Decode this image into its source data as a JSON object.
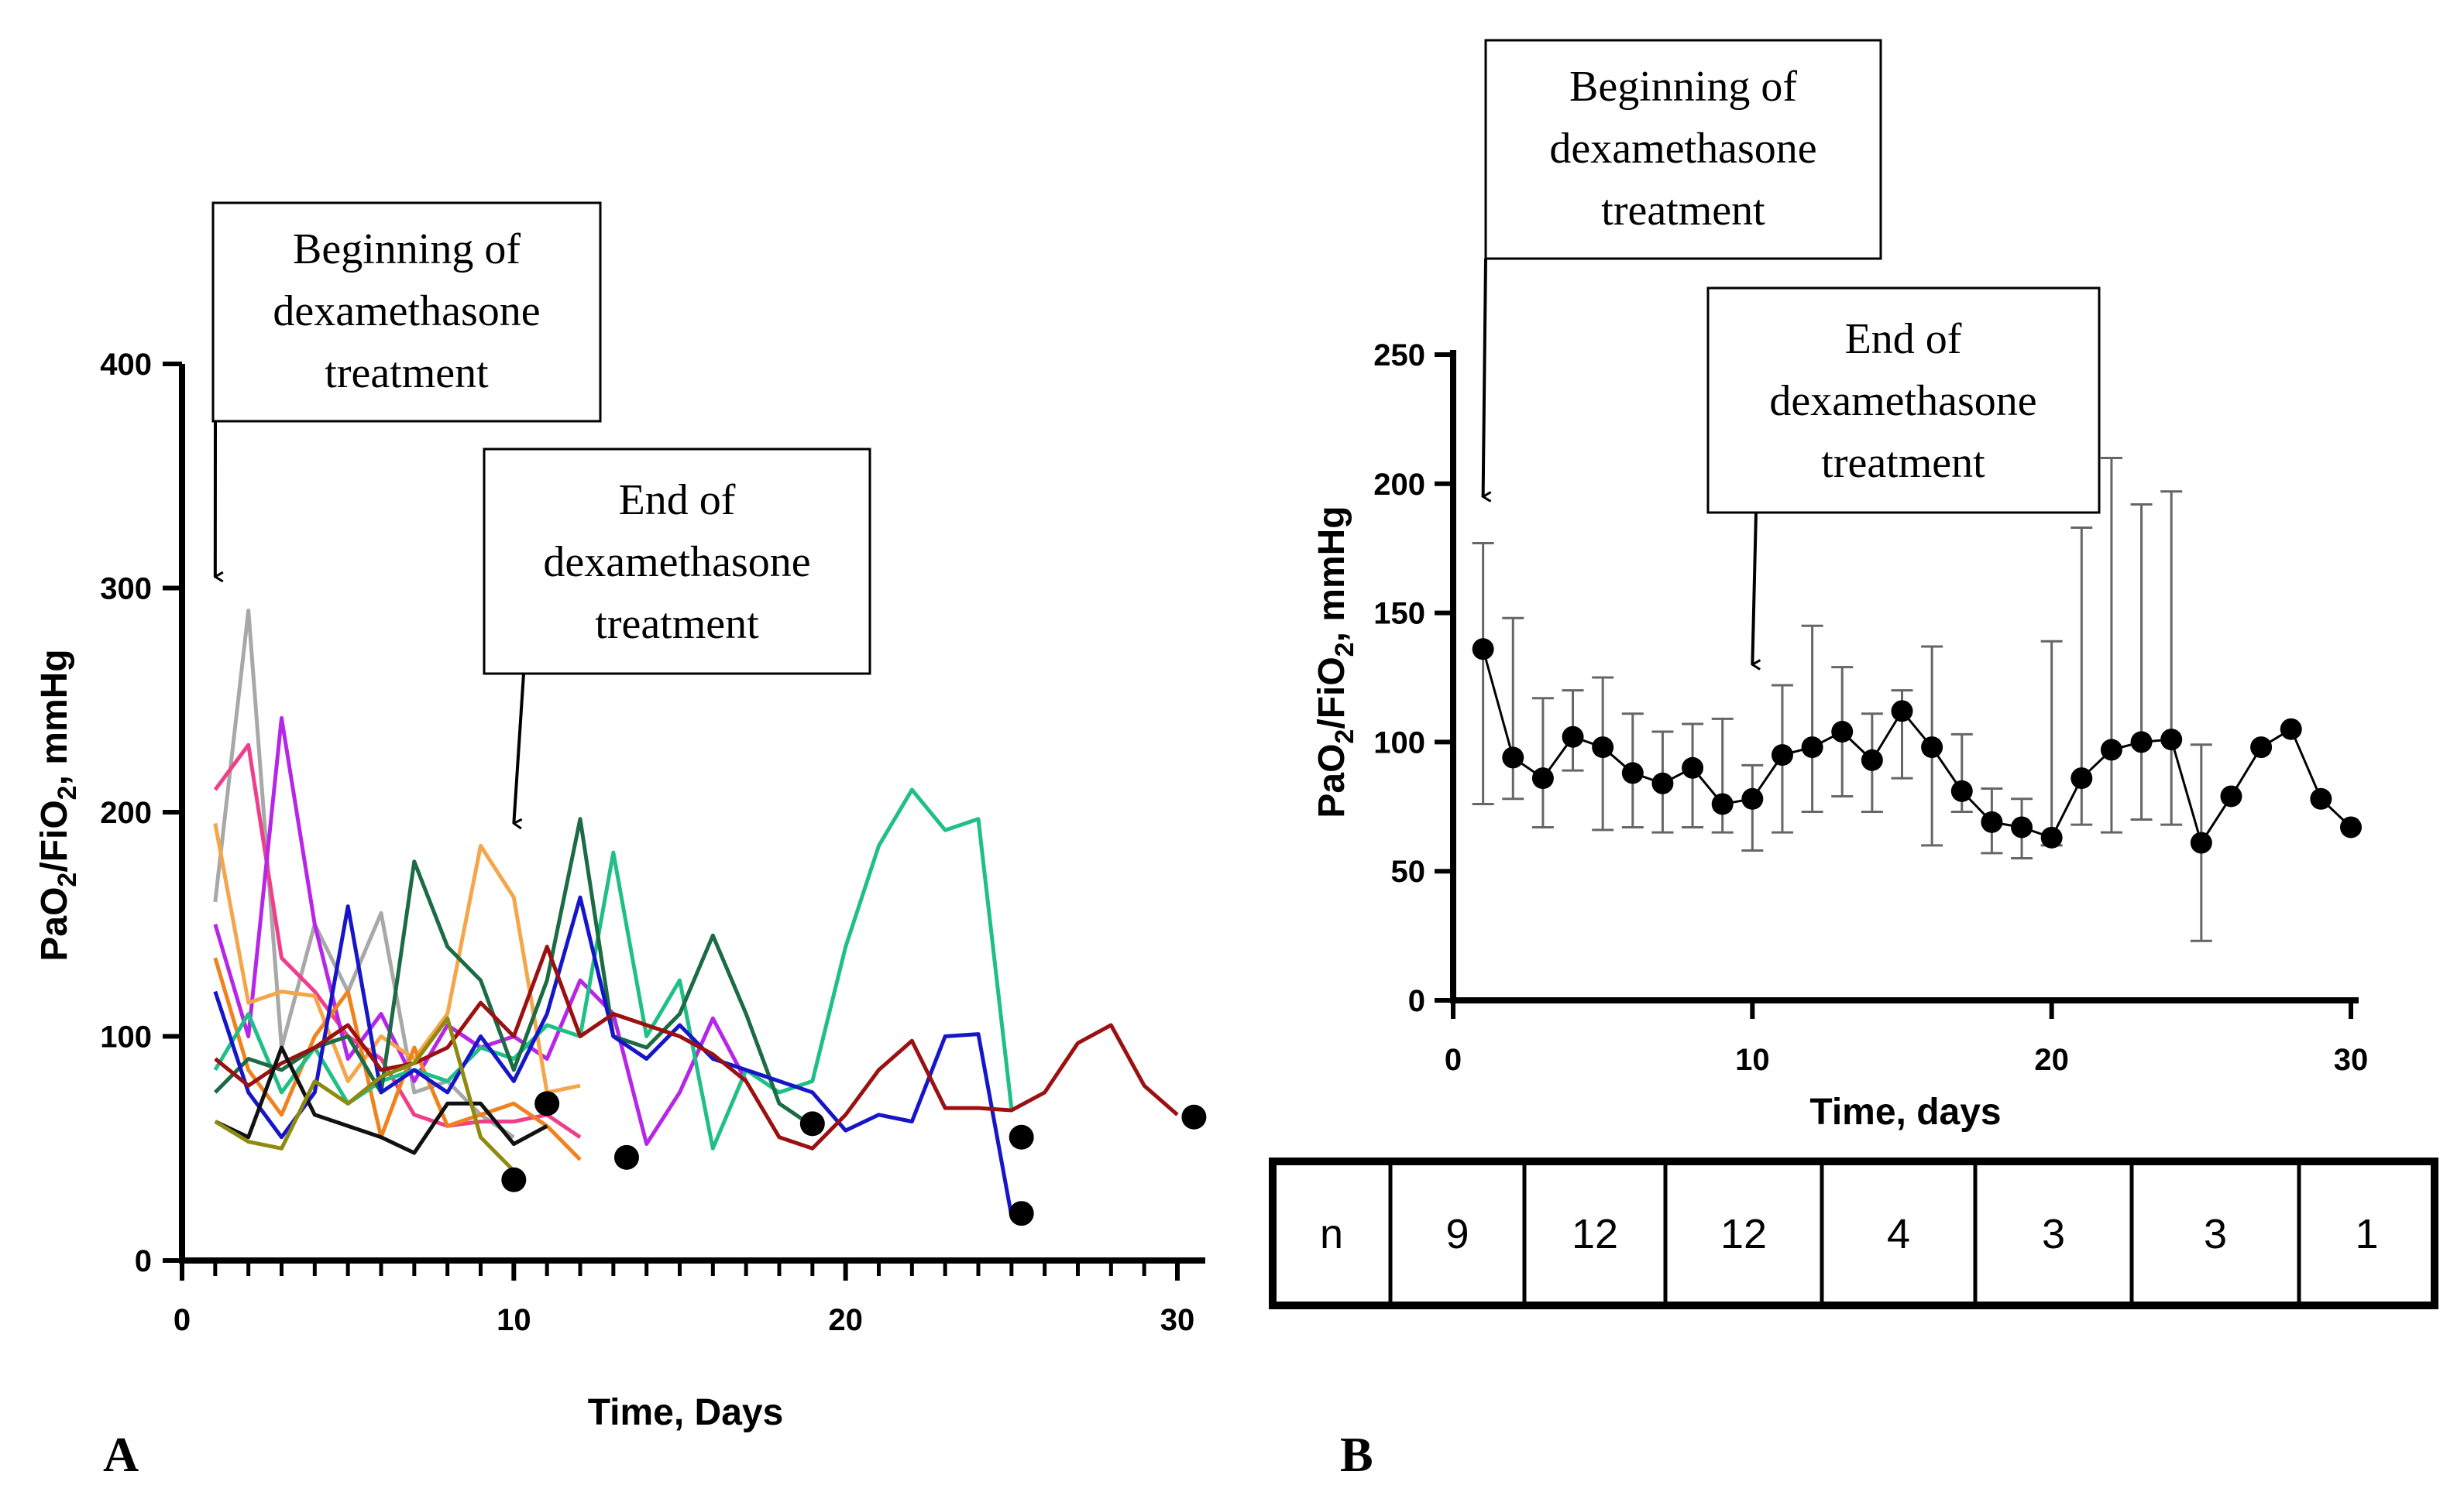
{
  "chart_data": [
    {
      "panel": "A",
      "type": "line",
      "title": "",
      "xlabel": "Time, Days",
      "ylabel": "PaO2/FiO2, mmHg",
      "xlim": [
        0,
        31
      ],
      "ylim": [
        0,
        400
      ],
      "xticks": [
        0,
        10,
        20,
        30
      ],
      "yticks": [
        0,
        100,
        200,
        300,
        400
      ],
      "annotations": [
        {
          "text": [
            "Beginning of",
            "dexamethasone",
            "treatment"
          ],
          "arrow_x": 1,
          "arrow_y": 305
        },
        {
          "text": [
            "End of",
            "dexamethasone",
            "treatment"
          ],
          "arrow_x": 10,
          "arrow_y": 195
        }
      ],
      "series": [
        {
          "name": "silver",
          "color": "#a8a8a8",
          "x": [
            1,
            2,
            3,
            4,
            5,
            6,
            7,
            8,
            9,
            10
          ],
          "y": [
            160,
            290,
            95,
            150,
            120,
            155,
            75,
            80,
            65,
            55
          ]
        },
        {
          "name": "pink",
          "color": "#ef3f8a",
          "x": [
            1,
            2,
            3,
            4,
            5,
            6,
            7,
            8,
            9,
            10,
            11,
            12
          ],
          "y": [
            210,
            230,
            135,
            120,
            100,
            90,
            65,
            60,
            62,
            62,
            65,
            55
          ]
        },
        {
          "name": "purple",
          "color": "#b626e8",
          "x": [
            1,
            2,
            3,
            4,
            5,
            6,
            7,
            8,
            9,
            10,
            11,
            12,
            13,
            14,
            15,
            16,
            17
          ],
          "y": [
            150,
            100,
            242,
            150,
            90,
            110,
            80,
            105,
            95,
            100,
            90,
            125,
            110,
            52,
            75,
            108,
            80
          ]
        },
        {
          "name": "orange",
          "color": "#f5a54a",
          "x": [
            1,
            2,
            3,
            4,
            5,
            6,
            7,
            8,
            9,
            10,
            11,
            12
          ],
          "y": [
            195,
            115,
            120,
            118,
            80,
            100,
            90,
            110,
            185,
            162,
            75,
            78
          ]
        },
        {
          "name": "dark-orange",
          "color": "#f0821e",
          "x": [
            1,
            2,
            3,
            4,
            5,
            6,
            7,
            8,
            9,
            10,
            11,
            12
          ],
          "y": [
            135,
            85,
            65,
            100,
            120,
            55,
            95,
            60,
            65,
            70,
            60,
            45
          ]
        },
        {
          "name": "teal",
          "color": "#1fbf86",
          "x": [
            1,
            2,
            3,
            4,
            5,
            6,
            7,
            8,
            9,
            10,
            11,
            12,
            13,
            14,
            15,
            16,
            17,
            18,
            19,
            20,
            21,
            22,
            23,
            24,
            25
          ],
          "y": [
            85,
            110,
            75,
            95,
            70,
            80,
            85,
            80,
            95,
            90,
            105,
            100,
            182,
            100,
            125,
            50,
            85,
            75,
            80,
            140,
            185,
            210,
            192,
            197,
            68
          ]
        },
        {
          "name": "dark-green",
          "color": "#1b6b45",
          "x": [
            1,
            2,
            3,
            4,
            5,
            6,
            7,
            8,
            9,
            10,
            11,
            12,
            13,
            14,
            15,
            16,
            17,
            18,
            19
          ],
          "y": [
            75,
            90,
            85,
            95,
            100,
            75,
            178,
            140,
            125,
            85,
            125,
            197,
            100,
            95,
            110,
            145,
            110,
            70,
            60
          ]
        },
        {
          "name": "blue",
          "color": "#1616c8",
          "x": [
            1,
            2,
            3,
            4,
            5,
            6,
            7,
            8,
            9,
            10,
            11,
            12,
            13,
            14,
            15,
            16,
            17,
            18,
            19,
            20,
            21,
            22,
            23,
            24,
            25
          ],
          "y": [
            120,
            75,
            55,
            75,
            158,
            75,
            85,
            75,
            100,
            80,
            110,
            162,
            100,
            90,
            105,
            90,
            85,
            80,
            75,
            58,
            65,
            62,
            100,
            101,
            20
          ]
        },
        {
          "name": "dark-red",
          "color": "#9b1010",
          "x": [
            1,
            2,
            3,
            4,
            5,
            6,
            7,
            8,
            9,
            10,
            11,
            12,
            13,
            14,
            15,
            16,
            17,
            18,
            19,
            20,
            21,
            22,
            23,
            24,
            25,
            26,
            27,
            28,
            29,
            30
          ],
          "y": [
            90,
            78,
            88,
            95,
            105,
            85,
            88,
            95,
            115,
            100,
            140,
            100,
            110,
            105,
            100,
            92,
            80,
            55,
            50,
            65,
            85,
            98,
            68,
            68,
            67,
            75,
            97,
            105,
            78,
            65
          ]
        },
        {
          "name": "black",
          "color": "#111111",
          "x": [
            1,
            2,
            3,
            4,
            5,
            6,
            7,
            8,
            9,
            10,
            11
          ],
          "y": [
            62,
            55,
            95,
            65,
            60,
            55,
            48,
            70,
            70,
            52,
            60
          ]
        },
        {
          "name": "olive",
          "color": "#8e8a10",
          "x": [
            1,
            2,
            3,
            4,
            5,
            6,
            7,
            8,
            9,
            10
          ],
          "y": [
            62,
            53,
            50,
            80,
            70,
            82,
            88,
            108,
            55,
            40
          ]
        }
      ],
      "endpoints": {
        "x": [
          10,
          11,
          13.4,
          19,
          25.3,
          25.3,
          30.5
        ],
        "y": [
          36,
          70,
          46,
          61,
          55,
          21,
          64
        ]
      }
    },
    {
      "panel": "B",
      "type": "line",
      "title": "",
      "xlabel": "Time, days",
      "ylabel": "PaO2/FiO2, mmHg",
      "xlim": [
        0,
        30
      ],
      "ylim": [
        0,
        250
      ],
      "xticks": [
        0,
        10,
        20,
        30
      ],
      "yticks": [
        0,
        50,
        100,
        150,
        200,
        250
      ],
      "annotations": [
        {
          "text": [
            "Beginning of",
            "dexamethasone",
            "treatment"
          ],
          "arrow_x": 1,
          "arrow_y": 195
        },
        {
          "text": [
            "End of",
            "dexamethasone",
            "treatment"
          ],
          "arrow_x": 10,
          "arrow_y": 130
        }
      ],
      "series": [
        {
          "name": "mean",
          "x": [
            1,
            2,
            3,
            4,
            5,
            6,
            7,
            8,
            9,
            10,
            11,
            12,
            13,
            14,
            15,
            16,
            17,
            18,
            19,
            20,
            21,
            22,
            23,
            24,
            25,
            26,
            27,
            28,
            29,
            30
          ],
          "y": [
            136,
            94,
            86,
            102,
            98,
            88,
            84,
            90,
            76,
            78,
            95,
            98,
            104,
            93,
            112,
            98,
            81,
            69,
            67,
            63,
            86,
            97,
            100,
            101,
            61,
            79,
            98,
            105,
            78,
            67
          ],
          "err_low": [
            76,
            78,
            67,
            89,
            66,
            67,
            65,
            67,
            65,
            58,
            65,
            73,
            79,
            73,
            86,
            60,
            73,
            57,
            55,
            60,
            68,
            65,
            70,
            68,
            23,
            79,
            98,
            105,
            78,
            67
          ],
          "err_high": [
            177,
            148,
            117,
            120,
            125,
            111,
            104,
            107,
            109,
            91,
            122,
            145,
            129,
            111,
            120,
            137,
            103,
            82,
            78,
            139,
            183,
            210,
            192,
            197,
            99,
            79,
            98,
            105,
            78,
            67
          ]
        }
      ],
      "n_table": {
        "header": "n",
        "values": [
          "9",
          "12",
          "12",
          "4",
          "3",
          "3",
          "1"
        ]
      }
    }
  ],
  "panel_labels": {
    "a": "A",
    "b": "B"
  }
}
